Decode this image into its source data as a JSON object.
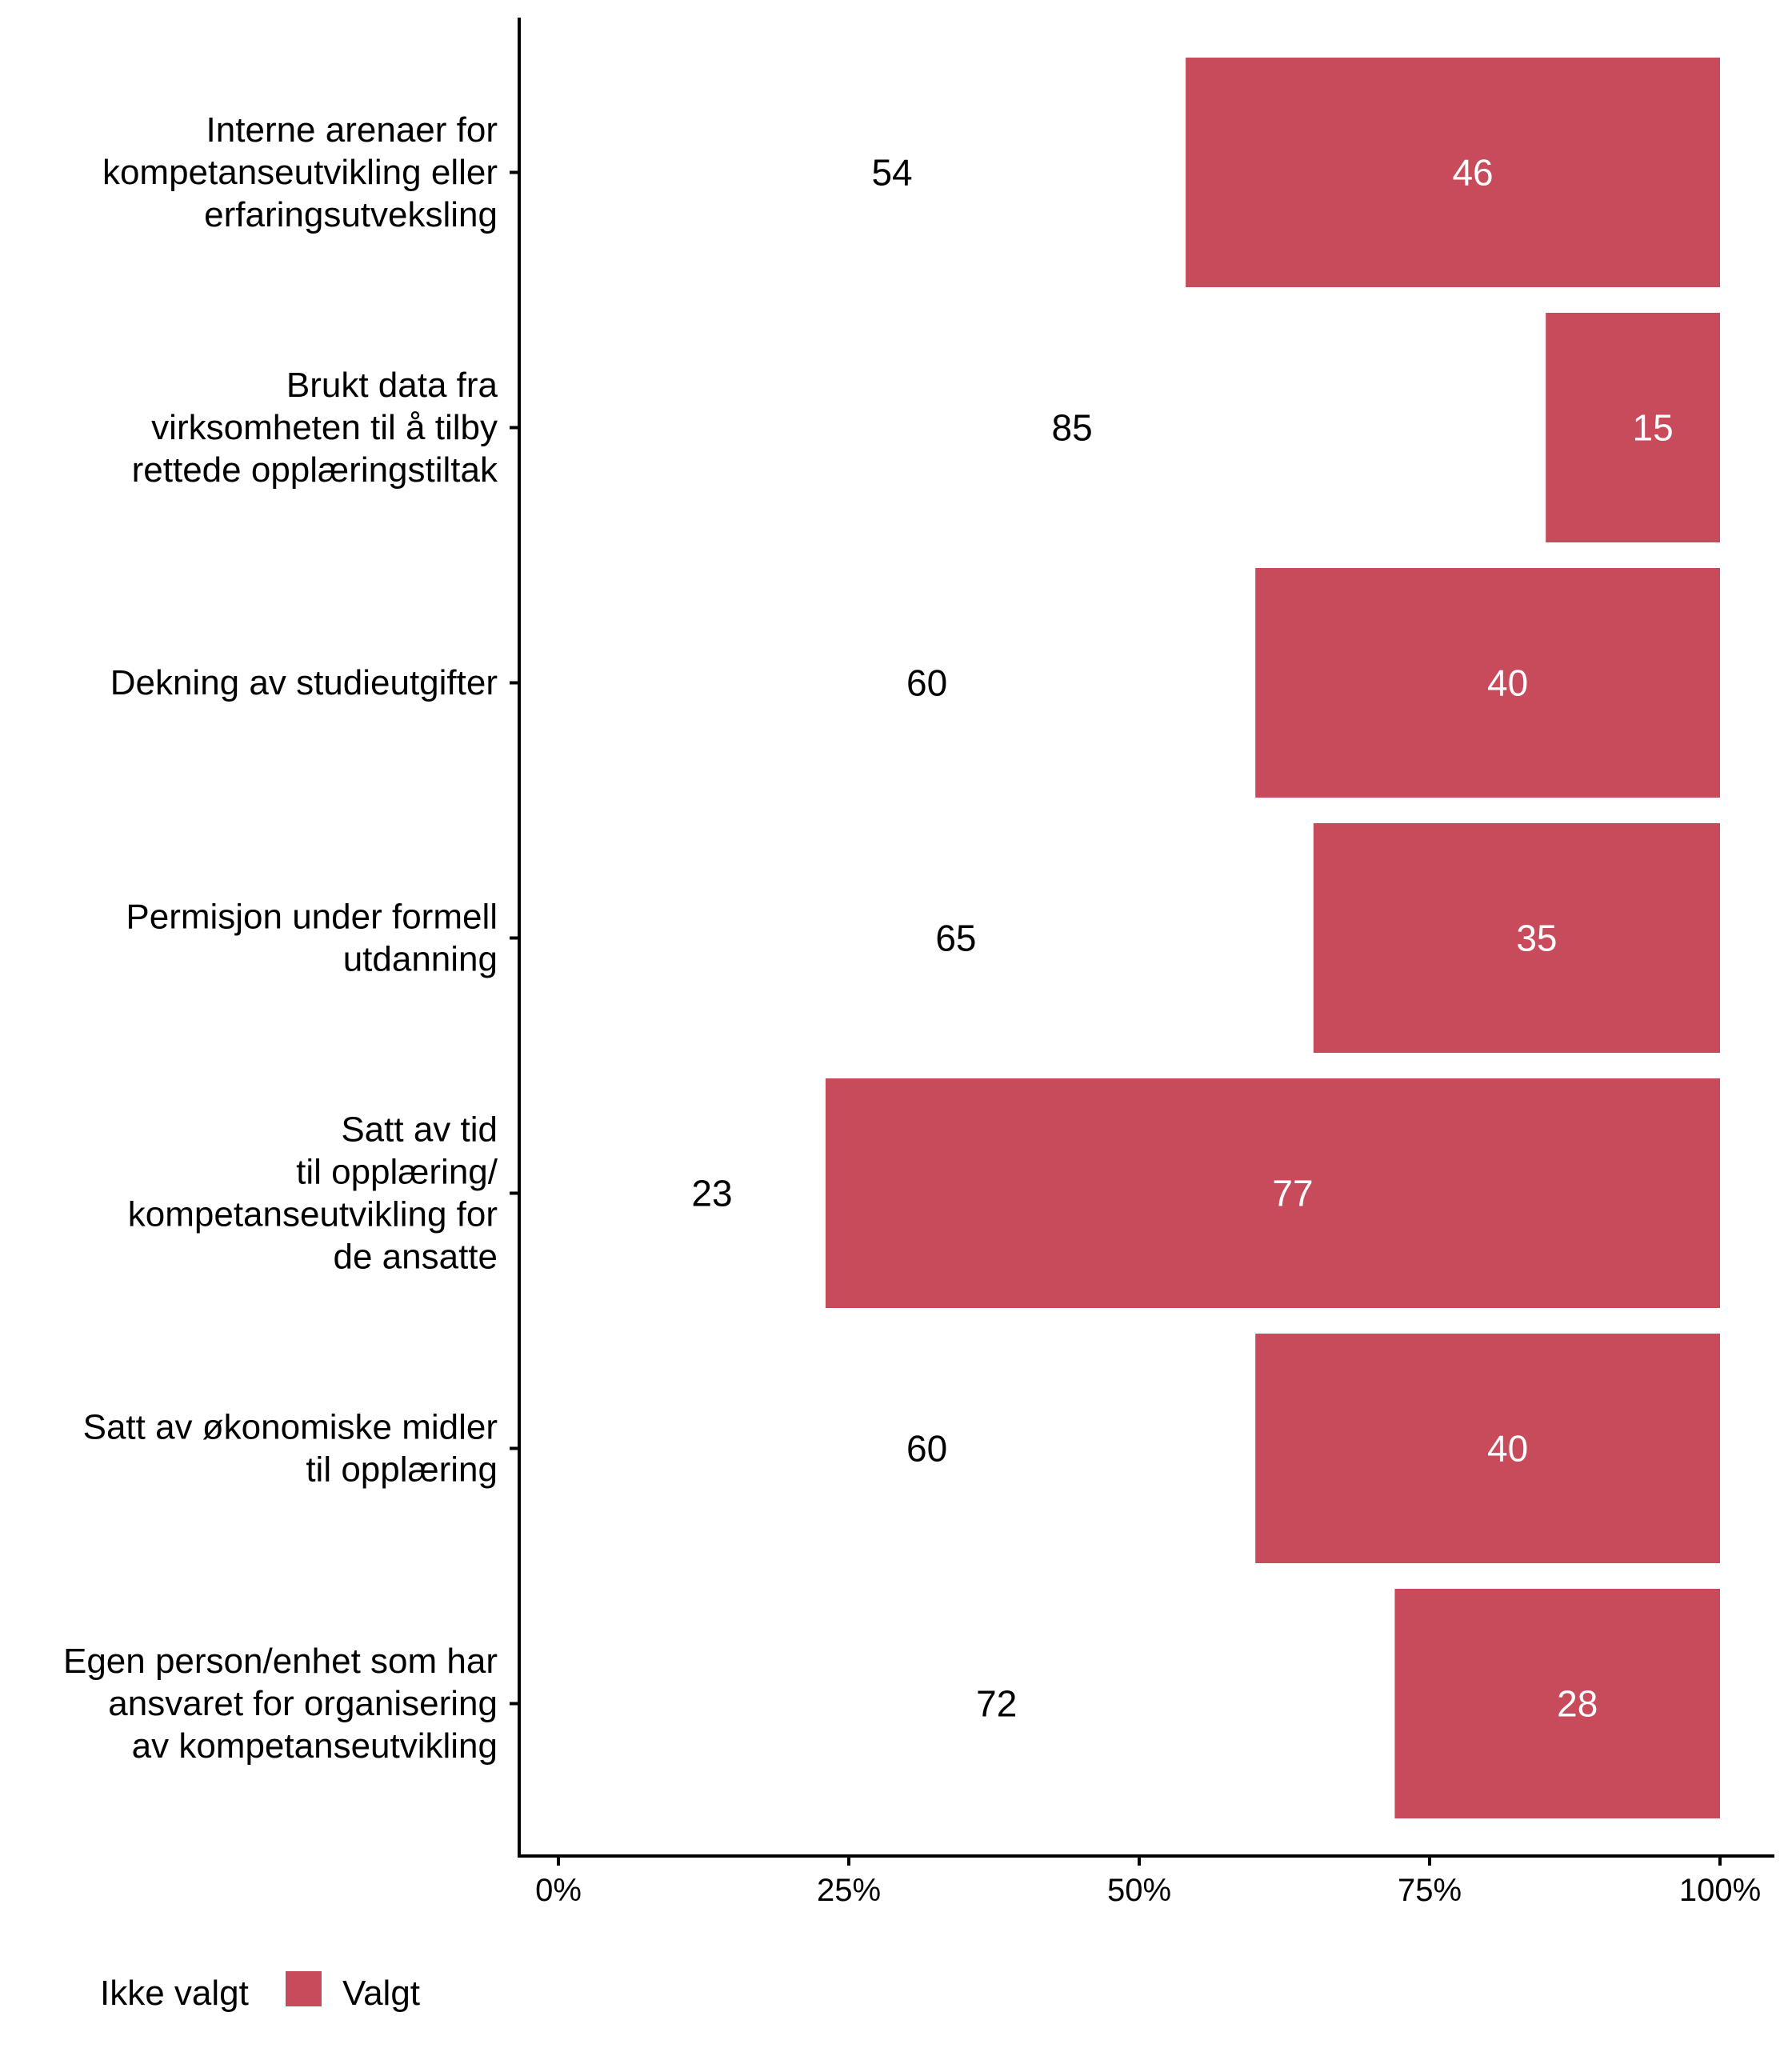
{
  "chart_data": {
    "type": "bar",
    "orientation": "horizontal",
    "stacked": true,
    "normalized_percent": true,
    "title": "",
    "xlabel": "",
    "ylabel": "",
    "xlim": [
      0,
      100
    ],
    "x_ticks": [
      "0%",
      "25%",
      "50%",
      "75%",
      "100%"
    ],
    "x_tick_values": [
      0,
      25,
      50,
      75,
      100
    ],
    "grid": false,
    "legend_position": "bottom-left",
    "categories": [
      [
        "Interne arenaer for",
        "kompetanseutvikling eller",
        "erfaringsutveksling"
      ],
      [
        "Brukt data fra",
        "virksomheten til å tilby",
        "rettede opplæringstiltak"
      ],
      [
        "Dekning av studieutgifter"
      ],
      [
        "Permisjon under formell",
        "utdanning"
      ],
      [
        "Satt av tid",
        "til opplæring/",
        "kompetanseutvikling for",
        "de ansatte"
      ],
      [
        "Satt av økonomiske midler",
        "til opplæring"
      ],
      [
        "Egen person/enhet som har",
        "ansvaret for organisering",
        "av kompetanseutvikling"
      ]
    ],
    "series": [
      {
        "name": "Ikke valgt",
        "color": "#FFFFFF",
        "label_color": "#000000",
        "values": [
          54,
          85,
          60,
          65,
          23,
          60,
          72
        ]
      },
      {
        "name": "Valgt",
        "color": "#C84B5B",
        "label_color": "#FFFFFF",
        "values": [
          46,
          15,
          40,
          35,
          77,
          40,
          28
        ]
      }
    ]
  },
  "legend": {
    "items": [
      {
        "label": "Ikke valgt",
        "color": "#FFFFFF"
      },
      {
        "label": "Valgt",
        "color": "#C84B5B"
      }
    ]
  }
}
